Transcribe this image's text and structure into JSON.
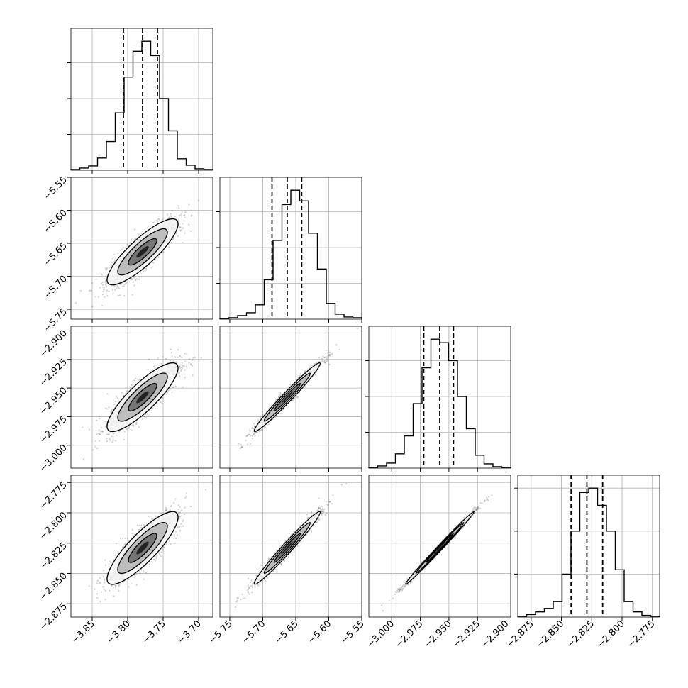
{
  "chart_data": {
    "type": "scatter",
    "variant": "corner-plot",
    "title": "",
    "grid": true,
    "histogram_style": "step",
    "quantile_line_style": "dashed",
    "contour_levels": 3,
    "colors": {
      "ink": "#000000",
      "grid": "#b0b0b0",
      "points": "#555555",
      "fill": "#444444"
    },
    "parameters": [
      {
        "name": "",
        "mean": -3.779,
        "std": 0.025,
        "quantiles": [
          -3.806,
          -3.779,
          -3.758
        ],
        "range": [
          -3.88,
          -3.68
        ],
        "ticks": [
          -3.85,
          -3.8,
          -3.75,
          -3.7
        ],
        "tick_labels": [
          "−3.85",
          "−3.80",
          "−3.75",
          "−3.70"
        ]
      },
      {
        "name": "",
        "mean": -5.663,
        "std": 0.025,
        "quantiles": [
          -5.686,
          -5.663,
          -5.641
        ],
        "range": [
          -5.765,
          -5.55
        ],
        "ticks": [
          -5.75,
          -5.7,
          -5.65,
          -5.6,
          -5.55
        ],
        "tick_labels": [
          "−5.75",
          "−5.70",
          "−5.65",
          "−5.60",
          "−5.55"
        ]
      },
      {
        "name": "",
        "mean": -2.958,
        "std": 0.015,
        "quantiles": [
          -2.972,
          -2.958,
          -2.946
        ],
        "range": [
          -3.02,
          -2.896
        ],
        "ticks": [
          -3.0,
          -2.975,
          -2.95,
          -2.925,
          -2.9
        ],
        "tick_labels": [
          "−3.000",
          "−2.975",
          "−2.950",
          "−2.925",
          "−2.900"
        ]
      },
      {
        "name": "",
        "mean": -2.829,
        "std": 0.015,
        "quantiles": [
          -2.842,
          -2.829,
          -2.816
        ],
        "range": [
          -2.886,
          -2.769
        ],
        "ticks": [
          -2.875,
          -2.85,
          -2.825,
          -2.8,
          -2.775
        ],
        "tick_labels": [
          "−2.875",
          "−2.850",
          "−2.825",
          "−2.800",
          "−2.775"
        ]
      }
    ],
    "correlations": [
      [
        1.0,
        0.85,
        0.85,
        0.85
      ],
      [
        0.85,
        1.0,
        0.98,
        0.98
      ],
      [
        0.85,
        0.98,
        1.0,
        0.995
      ],
      [
        0.85,
        0.98,
        0.995,
        1.0
      ]
    ],
    "histogram_counts": [
      [
        1,
        3,
        6,
        17,
        40,
        80,
        130,
        166,
        180,
        160,
        100,
        55,
        16,
        7,
        2,
        1
      ],
      [
        1,
        2,
        5,
        9,
        20,
        55,
        110,
        160,
        180,
        165,
        120,
        70,
        22,
        7,
        3,
        2
      ],
      [
        1,
        3,
        7,
        20,
        45,
        90,
        140,
        180,
        175,
        150,
        100,
        55,
        18,
        6,
        2,
        1
      ],
      [
        1,
        3,
        6,
        10,
        18,
        50,
        100,
        145,
        150,
        130,
        100,
        55,
        18,
        6,
        2,
        1
      ]
    ]
  }
}
